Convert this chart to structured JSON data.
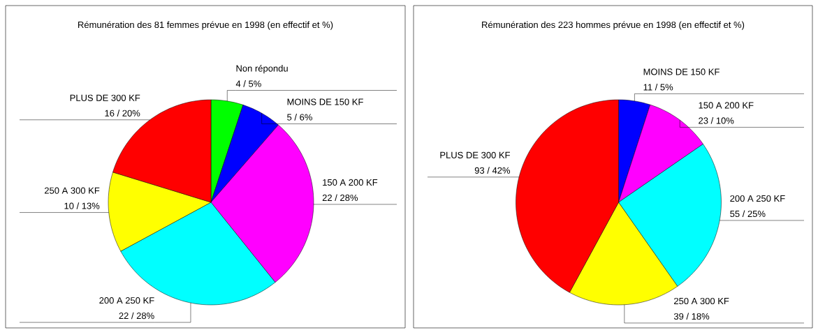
{
  "chart_data": [
    {
      "type": "pie",
      "title": "Rémunération des 81 femmes prévue en 1998 (en effectif et %)",
      "categories": [
        "Non répondu",
        "MOINS DE 150 KF",
        "150 A 200 KF",
        "200 A 250 KF",
        "250 A 300 KF",
        "PLUS DE 300 KF"
      ],
      "values": [
        4,
        5,
        22,
        22,
        10,
        16
      ],
      "value_labels": [
        "4 / 5%",
        "5 / 6%",
        "22 / 28%",
        "22 / 28%",
        "10 / 13%",
        "16 / 20%"
      ],
      "colors": [
        "#00ff00",
        "#0000ff",
        "#ff00ff",
        "#00ffff",
        "#ffff00",
        "#ff0000"
      ]
    },
    {
      "type": "pie",
      "title": "Rémunération des 223 hommes prévue en 1998 (en effectif et %)",
      "categories": [
        "MOINS DE 150 KF",
        "150 A 200 KF",
        "200 A 250 KF",
        "250 A 300 KF",
        "PLUS DE 300 KF"
      ],
      "values": [
        11,
        23,
        55,
        39,
        93
      ],
      "value_labels": [
        "11 / 5%",
        "23 / 10%",
        "55 / 25%",
        "39 / 18%",
        "93 / 42%"
      ],
      "colors": [
        "#0000ff",
        "#ff00ff",
        "#00ffff",
        "#ffff00",
        "#ff0000"
      ]
    }
  ]
}
